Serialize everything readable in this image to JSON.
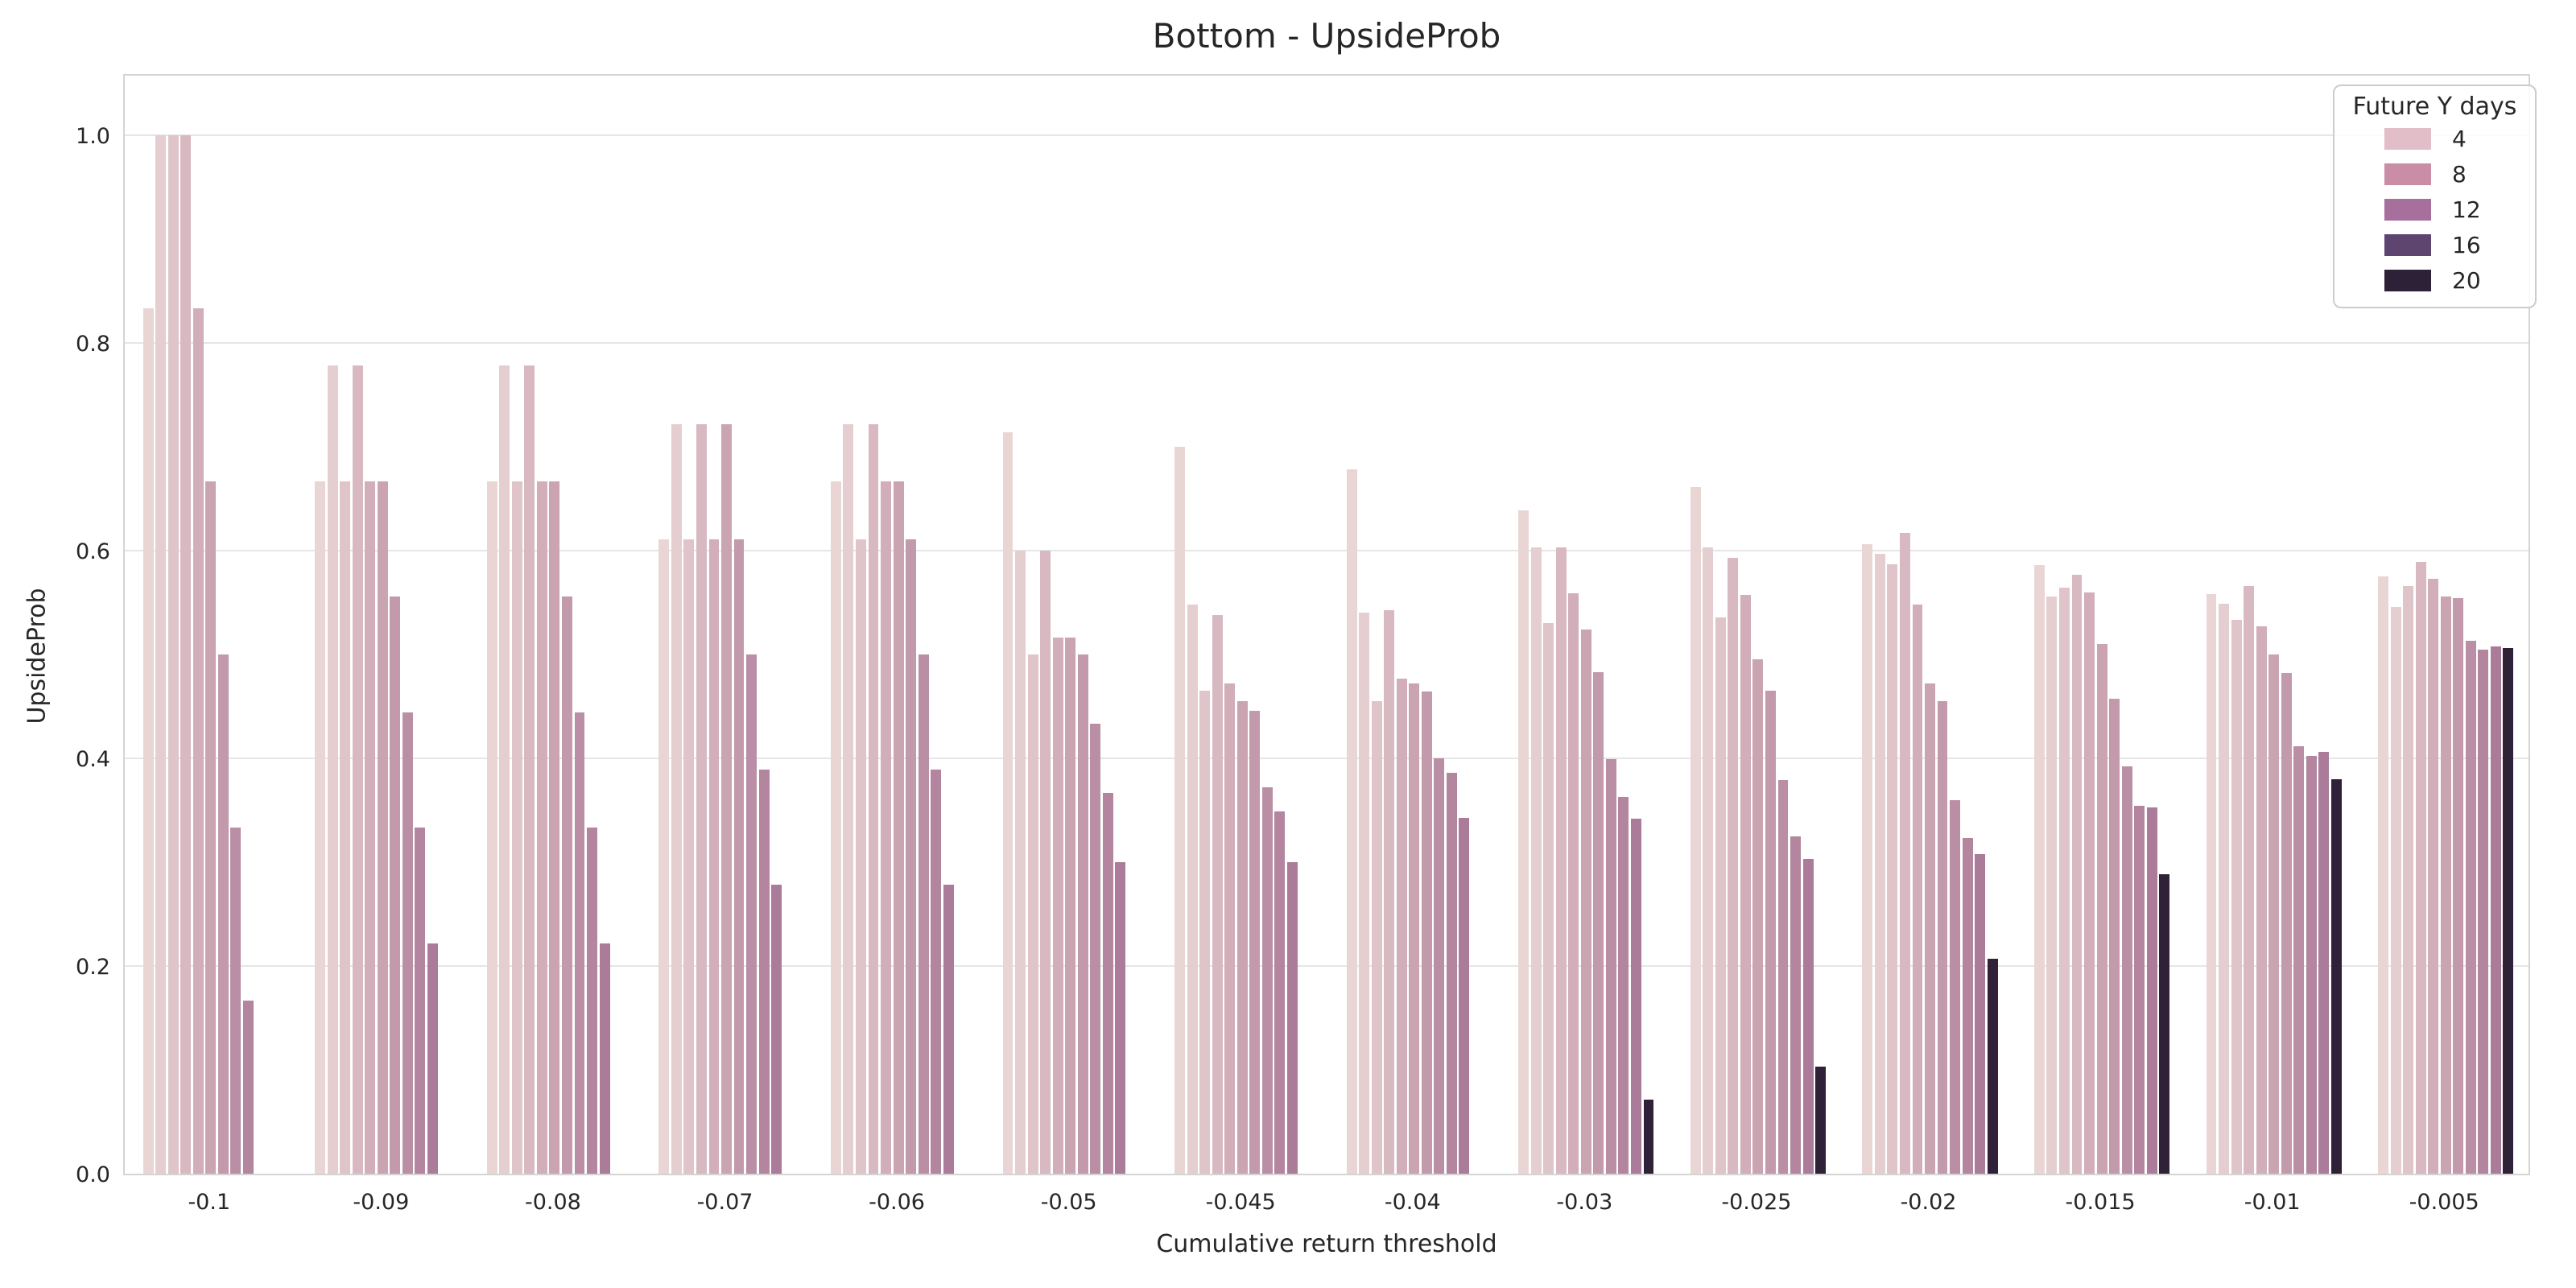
{
  "title": "Bottom - UpsideProb",
  "chart_data": {
    "type": "bar",
    "title": "Bottom - UpsideProb",
    "xlabel": "Cumulative return threshold",
    "ylabel": "UpsideProb",
    "ylim": [
      0,
      1.06
    ],
    "ytick_labels": [
      "0.0",
      "0.2",
      "0.4",
      "0.6",
      "0.8",
      "1.0"
    ],
    "yticks": [
      0.0,
      0.2,
      0.4,
      0.6,
      0.8,
      1.0
    ],
    "grid": true,
    "legend": {
      "title": "Future Y days",
      "position": "upper right",
      "entries": [
        {
          "label": "4",
          "color": "#e2bec8"
        },
        {
          "label": "8",
          "color": "#c98ea6"
        },
        {
          "label": "12",
          "color": "#a76f9b"
        },
        {
          "label": "16",
          "color": "#5e4570"
        },
        {
          "label": "20",
          "color": "#2d2138"
        }
      ]
    },
    "categories": [
      "-0.1",
      "-0.09",
      "-0.08",
      "-0.07",
      "-0.06",
      "-0.05",
      "-0.045",
      "-0.04",
      "-0.03",
      "-0.025",
      "-0.02",
      "-0.015",
      "-0.01",
      "-0.005"
    ],
    "series": [
      {
        "color": "#e9d6d4",
        "values": [
          0.833,
          0.667,
          0.667,
          0.611,
          0.667,
          0.714,
          0.7,
          0.678,
          0.639,
          0.661,
          0.606,
          0.586,
          0.558,
          0.575
        ]
      },
      {
        "color": "#e4ced0",
        "values": [
          1.0,
          0.778,
          0.778,
          0.722,
          0.722,
          0.6,
          0.548,
          0.54,
          0.603,
          0.603,
          0.597,
          0.556,
          0.549,
          0.546
        ]
      },
      {
        "color": "#dfc4c9",
        "values": [
          1.0,
          0.667,
          0.667,
          0.611,
          0.611,
          0.5,
          0.465,
          0.455,
          0.53,
          0.536,
          0.587,
          0.564,
          0.533,
          0.566
        ]
      },
      {
        "color": "#d8b9c1",
        "values": [
          1.0,
          0.778,
          0.778,
          0.722,
          0.722,
          0.6,
          0.538,
          0.543,
          0.603,
          0.593,
          0.617,
          0.577,
          0.566,
          0.589
        ]
      },
      {
        "color": "#d1aeb9",
        "values": [
          0.833,
          0.667,
          0.667,
          0.611,
          0.667,
          0.516,
          0.472,
          0.477,
          0.559,
          0.557,
          0.548,
          0.56,
          0.527,
          0.573
        ]
      },
      {
        "color": "#cba4b2",
        "values": [
          0.667,
          0.667,
          0.667,
          0.722,
          0.667,
          0.516,
          0.455,
          0.472,
          0.524,
          0.495,
          0.472,
          0.51,
          0.5,
          0.556
        ]
      },
      {
        "color": "#c29aac",
        "values": [
          0.5,
          0.556,
          0.556,
          0.611,
          0.611,
          0.5,
          0.446,
          0.464,
          0.483,
          0.465,
          0.455,
          0.457,
          0.482,
          0.554
        ]
      },
      {
        "color": "#ba8fa5",
        "values": [
          0.333,
          0.444,
          0.444,
          0.5,
          0.5,
          0.433,
          0.372,
          0.4,
          0.399,
          0.379,
          0.36,
          0.392,
          0.412,
          0.513
        ]
      },
      {
        "color": "#b3859f",
        "values": [
          0.167,
          0.333,
          0.333,
          0.389,
          0.389,
          0.367,
          0.349,
          0.386,
          0.363,
          0.325,
          0.323,
          0.354,
          0.402,
          0.505
        ]
      },
      {
        "color": "#aa7c99",
        "values": [
          null,
          0.222,
          0.222,
          0.278,
          0.278,
          0.3,
          0.3,
          0.343,
          0.342,
          0.303,
          0.308,
          0.353,
          0.406,
          0.508
        ]
      },
      {
        "color": "#2e2138",
        "values": [
          null,
          null,
          null,
          null,
          null,
          null,
          null,
          null,
          0.071,
          0.103,
          0.207,
          0.288,
          0.38,
          0.506
        ]
      }
    ]
  }
}
